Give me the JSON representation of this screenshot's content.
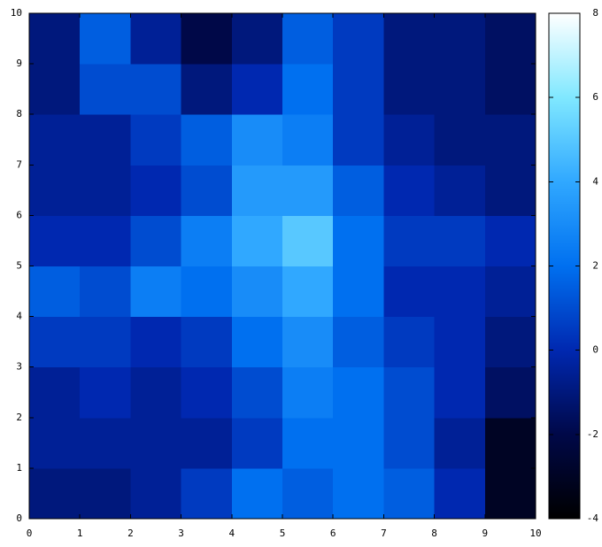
{
  "chart_data": {
    "type": "heatmap",
    "xbins": [
      0,
      1,
      2,
      3,
      4,
      5,
      6,
      7,
      8,
      9,
      10
    ],
    "ybins": [
      0,
      1,
      2,
      3,
      4,
      5,
      6,
      7,
      8,
      9,
      10
    ],
    "z": [
      [
        -1,
        -1,
        -0.5,
        0.5,
        2,
        1.5,
        2,
        1.5,
        0,
        -3
      ],
      [
        -0.5,
        -0.5,
        -0.5,
        -0.5,
        0.5,
        2,
        2,
        1,
        -0.5,
        -3
      ],
      [
        -0.5,
        0,
        -0.5,
        0,
        1,
        2.5,
        2,
        1,
        0,
        -1.5
      ],
      [
        0.5,
        0.5,
        0,
        0.5,
        2,
        3,
        1.5,
        0.5,
        0,
        -1
      ],
      [
        1.5,
        1,
        2.5,
        2,
        3,
        4,
        2,
        0,
        0,
        -0.5
      ],
      [
        0,
        0,
        1,
        2.5,
        4,
        5,
        2,
        0.5,
        0.5,
        0
      ],
      [
        -0.5,
        -0.5,
        0,
        1,
        3.5,
        3.5,
        1.5,
        0,
        -0.5,
        -1
      ],
      [
        -0.5,
        -0.5,
        0.5,
        1.5,
        3,
        2.5,
        0.5,
        -0.5,
        -1,
        -1
      ],
      [
        -1,
        1,
        1,
        -1,
        0,
        2,
        0.5,
        -1,
        -1,
        -1.5
      ],
      [
        -1,
        1.5,
        -0.5,
        -2,
        -1,
        1.5,
        0.5,
        -1,
        -1,
        -1.5
      ]
    ],
    "xlim": [
      0,
      10
    ],
    "ylim": [
      0,
      10
    ],
    "xticks": [
      0,
      1,
      2,
      3,
      4,
      5,
      6,
      7,
      8,
      9,
      10
    ],
    "yticks": [
      0,
      1,
      2,
      3,
      4,
      5,
      6,
      7,
      8,
      9,
      10
    ],
    "clim": [
      -4,
      8
    ],
    "cticks": [
      -4,
      -2,
      0,
      2,
      4,
      6,
      8
    ],
    "colormap": [
      "#000000",
      "#000848",
      "#0028b0",
      "#0070f0",
      "#30a8ff",
      "#80e8ff",
      "#ffffff"
    ]
  }
}
